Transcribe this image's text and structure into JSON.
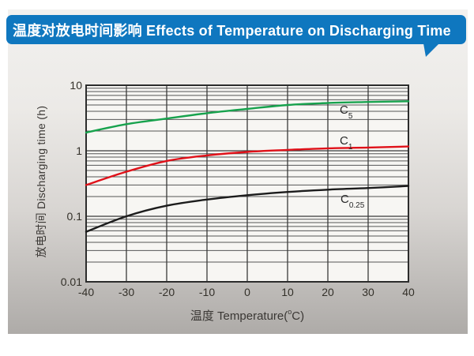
{
  "banner": {
    "title": "温度对放电时间影响 Effects of Temperature on Discharging Time",
    "bg_color": "#0f77bf",
    "text_color": "#ffffff"
  },
  "chart": {
    "x_axis": {
      "title_pre": "温度  Temperature(",
      "title_deg": "o",
      "title_post": "C)",
      "tick_labels": [
        "-40",
        "-30",
        "-20",
        "-10",
        "0",
        "10",
        "20",
        "30",
        "40"
      ]
    },
    "y_axis": {
      "title": "放电时间 Discharging time (h)",
      "tick_labels": [
        "10",
        "1",
        "0.1",
        "0.01"
      ],
      "tick_values": [
        10,
        1,
        0.1,
        0.01
      ]
    },
    "curve_labels": [
      {
        "main": "C",
        "sub": "5"
      },
      {
        "main": "C",
        "sub": "1"
      },
      {
        "main": "C",
        "sub": "0.25"
      }
    ],
    "colors": {
      "plot_bg": "#f7f6f3",
      "grid_minor": "#565656",
      "grid_major": "#3a3a3a",
      "border": "#2c2c2c"
    }
  },
  "chart_data": {
    "type": "line",
    "x": [
      -40,
      -30,
      -20,
      -10,
      0,
      10,
      20,
      30,
      40
    ],
    "xlim": [
      -40,
      40
    ],
    "ylim": [
      0.01,
      10
    ],
    "y_scale": "log",
    "grid": true,
    "xlabel": "温度 Temperature(°C)",
    "ylabel": "放电时间 Discharging time (h)",
    "series": [
      {
        "name": "C5",
        "color": "#17a24d",
        "values": [
          1.9,
          2.55,
          3.1,
          3.75,
          4.35,
          5.0,
          5.35,
          5.55,
          5.7
        ]
      },
      {
        "name": "C1",
        "color": "#e01119",
        "values": [
          0.3,
          0.48,
          0.7,
          0.85,
          0.96,
          1.03,
          1.09,
          1.12,
          1.16
        ]
      },
      {
        "name": "C0.25",
        "color": "#1c1c1c",
        "values": [
          0.058,
          0.1,
          0.145,
          0.18,
          0.21,
          0.235,
          0.255,
          0.27,
          0.29
        ]
      }
    ]
  }
}
